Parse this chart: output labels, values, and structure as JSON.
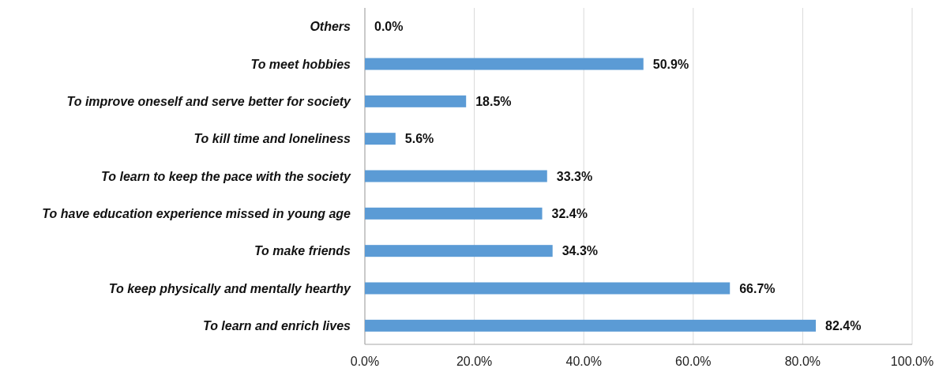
{
  "chart_data": {
    "type": "bar",
    "orientation": "horizontal",
    "categories": [
      "Others",
      "To meet hobbies",
      "To improve oneself and serve better for society",
      "To kill time and loneliness",
      "To learn to keep the pace with the society",
      "To have education experience missed in young age",
      "To make friends",
      "To keep physically and mentally hearthy",
      "To learn and enrich lives"
    ],
    "values": [
      0.0,
      50.9,
      18.5,
      5.6,
      33.3,
      32.4,
      34.3,
      66.7,
      82.4
    ],
    "value_labels": [
      "0.0%",
      "50.9%",
      "18.5%",
      "5.6%",
      "33.3%",
      "32.4%",
      "34.3%",
      "66.7%",
      "82.4%"
    ],
    "color": "#5b9bd5",
    "xlim": [
      0,
      100
    ],
    "xticks": [
      {
        "value": 0,
        "label": "0.0%"
      },
      {
        "value": 20,
        "label": "20.0%"
      },
      {
        "value": 40,
        "label": "40.0%"
      },
      {
        "value": 60,
        "label": "60.0%"
      },
      {
        "value": 80,
        "label": "80.0%"
      },
      {
        "value": 100,
        "label": "100.0%"
      }
    ],
    "grid": "x"
  }
}
